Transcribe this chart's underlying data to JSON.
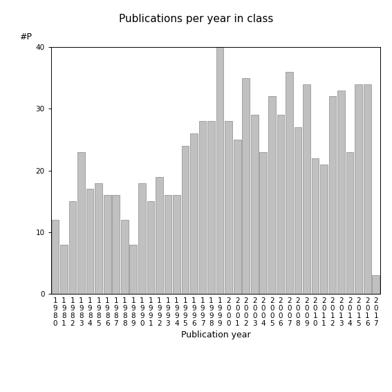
{
  "years": [
    "1980",
    "1981",
    "1982",
    "1983",
    "1984",
    "1985",
    "1986",
    "1987",
    "1988",
    "1989",
    "1990",
    "1991",
    "1992",
    "1993",
    "1994",
    "1995",
    "1996",
    "1997",
    "1998",
    "1999",
    "2000",
    "2001",
    "2002",
    "2003",
    "2004",
    "2005",
    "2006",
    "2007",
    "2008",
    "2009",
    "2010",
    "2011",
    "2012",
    "2013",
    "2014",
    "2015",
    "2016",
    "2017"
  ],
  "values": [
    12,
    8,
    15,
    23,
    17,
    18,
    16,
    16,
    12,
    8,
    18,
    15,
    19,
    16,
    16,
    24,
    26,
    28,
    28,
    40,
    28,
    25,
    35,
    29,
    23,
    32,
    29,
    36,
    27,
    34,
    22,
    21,
    32,
    33,
    23,
    34,
    34,
    3
  ],
  "bar_color": "#c0c0c0",
  "bar_edgecolor": "#888888",
  "title": "Publications per year in class",
  "xlabel": "Publication year",
  "ylabel": "#P",
  "ylim": [
    0,
    40
  ],
  "yticks": [
    0,
    10,
    20,
    30,
    40
  ],
  "background_color": "#ffffff",
  "title_fontsize": 11,
  "label_fontsize": 9,
  "tick_fontsize": 7.5
}
